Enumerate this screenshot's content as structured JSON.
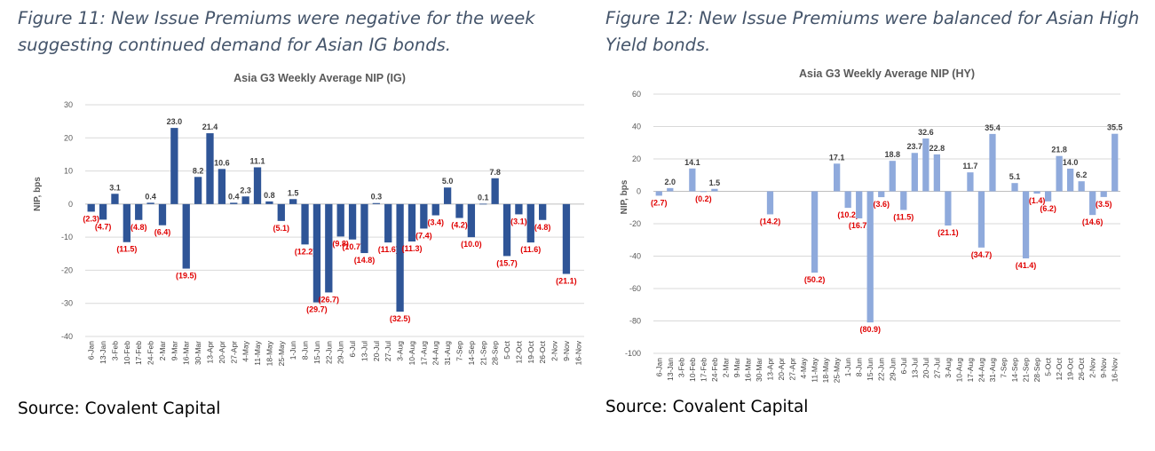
{
  "left": {
    "caption": "Figure 11: New Issue Premiums were negative for the week suggesting continued demand for Asian IG bonds.",
    "source": "Source: Covalent Capital"
  },
  "right": {
    "caption": "Figure 12: New Issue Premiums were balanced for Asian High Yield bonds.",
    "source": "Source: Covalent Capital"
  },
  "chart_data": [
    {
      "type": "bar",
      "title": "Asia G3 Weekly Average NIP (IG)",
      "ylabel": "NIP, bps",
      "xlabel": "",
      "ylim": [
        -40,
        30
      ],
      "yticks": [
        30,
        20,
        10,
        0,
        -10,
        -20,
        -30,
        -40
      ],
      "grid": true,
      "bar_color": "#2f5597",
      "positive_label_color": "#404040",
      "negative_label_color": "#e00000",
      "categories": [
        "6-Jan",
        "13-Jan",
        "3-Feb",
        "10-Feb",
        "17-Feb",
        "24-Feb",
        "2-Mar",
        "9-Mar",
        "16-Mar",
        "30-Mar",
        "13-Apr",
        "20-Apr",
        "27-Apr",
        "4-May",
        "11-May",
        "18-May",
        "25-May",
        "1-Jun",
        "8-Jun",
        "15-Jun",
        "22-Jun",
        "29-Jun",
        "6-Jul",
        "13-Jul",
        "20-Jul",
        "27-Jul",
        "3-Aug",
        "10-Aug",
        "17-Aug",
        "24-Aug",
        "31-Aug",
        "7-Sep",
        "14-Sep",
        "21-Sep",
        "28-Sep",
        "5-Oct",
        "12-Oct",
        "19-Oct",
        "26-Oct",
        "2-Nov",
        "9-Nov",
        "16-Nov"
      ],
      "values": [
        -2.3,
        -4.7,
        3.1,
        -11.5,
        -4.8,
        0.4,
        -6.4,
        23.0,
        -19.5,
        8.2,
        21.4,
        10.6,
        0.4,
        2.3,
        11.1,
        0.8,
        -5.1,
        1.5,
        -12.2,
        -29.7,
        -26.7,
        -9.8,
        -10.7,
        -14.8,
        0.3,
        -11.6,
        -32.5,
        -11.3,
        -7.4,
        -3.4,
        5.0,
        -4.2,
        -10.0,
        0.1,
        7.8,
        -15.7,
        -3.1,
        -11.6,
        -4.8,
        null,
        -21.1,
        null
      ],
      "labels": [
        "(2.3)",
        "(4.7)",
        "3.1",
        "(11.5)",
        "(4.8)",
        "0.4",
        "(6.4)",
        "23.0",
        "(19.5)",
        "8.2",
        "21.4",
        "10.6",
        "0.4",
        "2.3",
        "11.1",
        "0.8",
        "(5.1)",
        "1.5",
        "(12.2)",
        "(29.7)",
        "(26.7)",
        "(9.8)",
        "(10.7)",
        "(14.8)",
        "0.3",
        "(11.6)",
        "(32.5)",
        "(11.3)",
        "(7.4)",
        "(3.4)",
        "5.0",
        "(4.2)",
        "(10.0)",
        "0.1",
        "7.8",
        "(15.7)",
        "(3.1)",
        "(11.6)",
        "(4.8)",
        "",
        "(21.1)",
        ""
      ]
    },
    {
      "type": "bar",
      "title": "Asia G3 Weekly Average NIP (HY)",
      "ylabel": "NIP, bps",
      "xlabel": "",
      "ylim": [
        -100,
        60
      ],
      "yticks": [
        60,
        40,
        20,
        0,
        -20,
        -40,
        -60,
        -80,
        -100
      ],
      "grid": true,
      "bar_color": "#8faadc",
      "positive_label_color": "#404040",
      "negative_label_color": "#e00000",
      "categories": [
        "6-Jan",
        "13-Jan",
        "3-Feb",
        "10-Feb",
        "17-Feb",
        "24-Feb",
        "2-Mar",
        "9-Mar",
        "16-Mar",
        "30-Mar",
        "13-Apr",
        "20-Apr",
        "27-Apr",
        "4-May",
        "11-May",
        "18-May",
        "25-May",
        "1-Jun",
        "8-Jun",
        "15-Jun",
        "22-Jun",
        "29-Jun",
        "6-Jul",
        "13-Jul",
        "20-Jul",
        "27-Jul",
        "3-Aug",
        "10-Aug",
        "17-Aug",
        "24-Aug",
        "31-Aug",
        "7-Sep",
        "14-Sep",
        "21-Sep",
        "28-Sep",
        "5-Oct",
        "12-Oct",
        "19-Oct",
        "26-Oct",
        "2-Nov",
        "9-Nov",
        "16-Nov"
      ],
      "values": [
        -2.7,
        2.0,
        null,
        14.1,
        -0.2,
        1.5,
        null,
        null,
        null,
        null,
        -14.2,
        null,
        null,
        null,
        -50.2,
        null,
        17.1,
        -10.2,
        -16.7,
        -80.9,
        -3.6,
        18.8,
        -11.5,
        23.7,
        32.6,
        22.8,
        -21.1,
        null,
        11.7,
        -34.7,
        35.4,
        null,
        5.1,
        -41.4,
        -1.4,
        -6.2,
        21.8,
        14.0,
        6.2,
        -14.6,
        -3.5,
        35.5
      ],
      "labels": [
        "(2.7)",
        "2.0",
        "",
        "14.1",
        "(0.2)",
        "1.5",
        "",
        "",
        "",
        "",
        "(14.2)",
        "",
        "",
        "",
        "(50.2)",
        "",
        "17.1",
        "(10.2)",
        "(16.7)",
        "(80.9)",
        "(3.6)",
        "18.8",
        "(11.5)",
        "23.7",
        "32.6",
        "22.8",
        "(21.1)",
        "",
        "11.7",
        "(34.7)",
        "35.4",
        "",
        "5.1",
        "(41.4)",
        "(1.4)",
        "(6.2)",
        "21.8",
        "14.0",
        "6.2",
        "(14.6)",
        "(3.5)",
        "35.5"
      ]
    }
  ]
}
